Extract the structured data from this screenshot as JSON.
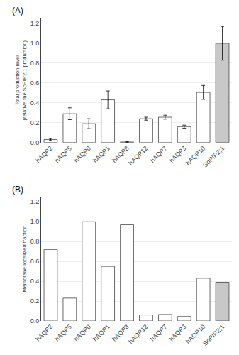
{
  "chart_data": [
    {
      "type": "bar",
      "title": "(A)",
      "ylabel": "Total production level\n(relative the SoPIP2;1 production)",
      "categories": [
        "hAQP2",
        "hAQP5",
        "hAQP0",
        "hAQP1",
        "hAQP8",
        "hAQP12",
        "hAQP7",
        "hAQP3",
        "hAQP10",
        "SoPIP2;1"
      ],
      "values": [
        0.03,
        0.29,
        0.19,
        0.43,
        0.005,
        0.24,
        0.255,
        0.16,
        0.505,
        1.0
      ],
      "errors": [
        0.01,
        0.06,
        0.05,
        0.09,
        0.003,
        0.015,
        0.02,
        0.015,
        0.07,
        0.17
      ],
      "colors": [
        "white",
        "white",
        "white",
        "white",
        "white",
        "white",
        "white",
        "white",
        "white",
        "#c8c8c8"
      ],
      "ylim": [
        0,
        1.25
      ],
      "yticks": [
        {
          "value": 0.0,
          "label": "0.0"
        },
        0.2,
        0.4,
        0.6,
        0.8,
        {
          "value": 1.0,
          "label": "1.0"
        },
        1.2
      ],
      "grid": true
    },
    {
      "type": "bar",
      "title": "(B)",
      "ylabel": "Membrane localized fraction",
      "categories": [
        "hAQP2",
        "hAQP5",
        "hAQP0",
        "hAQP1",
        "hAQP8",
        "hAQP12",
        "hAQP7",
        "hAQP3",
        "hAQP10",
        "SoPIP2;1"
      ],
      "values": [
        0.72,
        0.23,
        1.0,
        0.55,
        0.97,
        0.06,
        0.065,
        0.045,
        0.43,
        0.39
      ],
      "colors": [
        "white",
        "white",
        "white",
        "white",
        "white",
        "white",
        "white",
        "white",
        "white",
        "#c8c8c8"
      ],
      "ylim": [
        0,
        1.25
      ],
      "yticks": [
        {
          "value": 0.0,
          "label": "0.0"
        },
        0.2,
        0.4,
        0.6,
        0.8,
        {
          "value": 1.0,
          "label": "1.0"
        },
        1.2
      ],
      "grid": true
    }
  ]
}
